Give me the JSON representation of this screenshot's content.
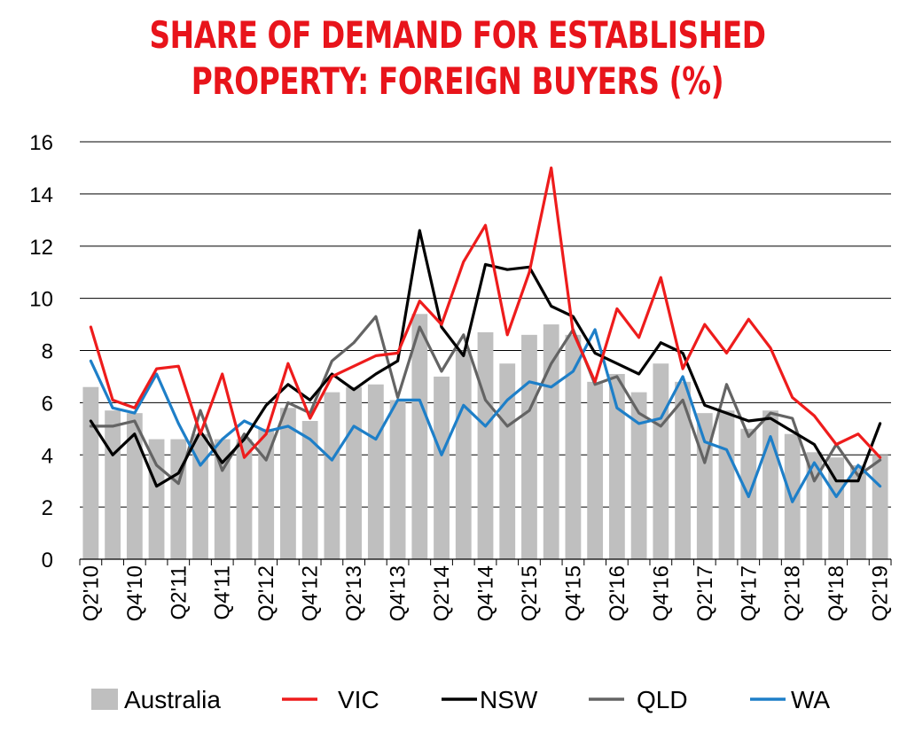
{
  "chart_data": {
    "type": "bar+line",
    "title_lines": [
      "SHARE OF DEMAND FOR ESTABLISHED",
      "PROPERTY: FOREIGN BUYERS (%)"
    ],
    "ylim": [
      0,
      16
    ],
    "yticks": [
      0,
      2,
      4,
      6,
      8,
      10,
      12,
      14,
      16
    ],
    "grid": true,
    "legend_position": "bottom",
    "categories": [
      "Q2'10",
      "Q3'10",
      "Q4'10",
      "Q1'11",
      "Q2'11",
      "Q3'11",
      "Q4'11",
      "Q1'12",
      "Q2'12",
      "Q3'12",
      "Q4'12",
      "Q1'13",
      "Q2'13",
      "Q3'13",
      "Q4'13",
      "Q1'14",
      "Q2'14",
      "Q3'14",
      "Q4'14",
      "Q1'15",
      "Q2'15",
      "Q3'15",
      "Q4'15",
      "Q1'16",
      "Q2'16",
      "Q3'16",
      "Q4'16",
      "Q1'17",
      "Q2'17",
      "Q3'17",
      "Q4'17",
      "Q1'18",
      "Q2'18",
      "Q3'18",
      "Q4'18",
      "Q1'19",
      "Q2'19"
    ],
    "tick_labels": [
      "Q2'10",
      "Q4'10",
      "Q2'11",
      "Q4'11",
      "Q2'12",
      "Q4'12",
      "Q2'13",
      "Q4'13",
      "Q2'14",
      "Q4'14",
      "Q2'15",
      "Q4'15",
      "Q2'16",
      "Q4'16",
      "Q2'17",
      "Q4'17",
      "Q2'18",
      "Q4'18",
      "Q2'19"
    ],
    "bars": {
      "name": "Australia",
      "color": "#bfbfbf",
      "values": [
        6.6,
        5.7,
        5.6,
        4.6,
        4.6,
        4.8,
        4.6,
        4.6,
        5.0,
        5.8,
        5.3,
        6.4,
        6.6,
        6.7,
        6.1,
        9.4,
        7.0,
        8.0,
        8.7,
        7.5,
        8.6,
        9.0,
        8.6,
        6.8,
        7.1,
        6.4,
        7.5,
        6.8,
        5.6,
        5.7,
        5.0,
        5.7,
        4.8,
        4.1,
        3.9,
        3.6,
        4.0
      ]
    },
    "series": [
      {
        "name": "VIC",
        "color": "#ee1c1c",
        "values": [
          8.9,
          6.1,
          5.8,
          7.3,
          7.4,
          4.8,
          7.1,
          3.9,
          4.8,
          7.5,
          5.4,
          7.0,
          7.4,
          7.8,
          7.9,
          9.9,
          9.0,
          11.4,
          12.8,
          8.6,
          11.0,
          15.0,
          8.7,
          6.8,
          9.6,
          8.5,
          10.8,
          7.3,
          9.0,
          7.9,
          9.2,
          8.1,
          6.2,
          5.5,
          4.4,
          4.8,
          3.9
        ]
      },
      {
        "name": "NSW",
        "color": "#000000",
        "values": [
          5.3,
          4.0,
          4.8,
          2.8,
          3.3,
          4.9,
          3.7,
          4.6,
          5.9,
          6.7,
          6.1,
          7.1,
          6.5,
          7.1,
          7.6,
          12.6,
          8.9,
          7.8,
          11.3,
          11.1,
          11.2,
          9.7,
          9.3,
          7.9,
          7.5,
          7.1,
          8.3,
          7.9,
          5.9,
          5.6,
          5.3,
          5.4,
          4.9,
          4.4,
          3.0,
          3.0,
          5.2
        ]
      },
      {
        "name": "QLD",
        "color": "#646464",
        "values": [
          5.1,
          5.1,
          5.3,
          3.6,
          2.9,
          5.7,
          3.4,
          4.8,
          3.8,
          6.0,
          5.6,
          7.6,
          8.3,
          9.3,
          6.2,
          8.9,
          7.2,
          8.6,
          6.1,
          5.1,
          5.7,
          7.5,
          8.8,
          6.7,
          7.0,
          5.6,
          5.1,
          6.1,
          3.7,
          6.7,
          4.7,
          5.6,
          5.4,
          3.0,
          4.4,
          3.2,
          3.8
        ]
      },
      {
        "name": "WA",
        "color": "#1e7fc8",
        "values": [
          7.6,
          5.8,
          5.6,
          7.1,
          5.2,
          3.6,
          4.6,
          5.3,
          4.9,
          5.1,
          4.6,
          3.8,
          5.1,
          4.6,
          6.1,
          6.1,
          4.0,
          5.9,
          5.1,
          6.1,
          6.8,
          6.6,
          7.2,
          8.8,
          5.8,
          5.2,
          5.4,
          7.0,
          4.5,
          4.2,
          2.4,
          4.7,
          2.2,
          3.7,
          2.4,
          3.6,
          2.8
        ]
      }
    ]
  }
}
